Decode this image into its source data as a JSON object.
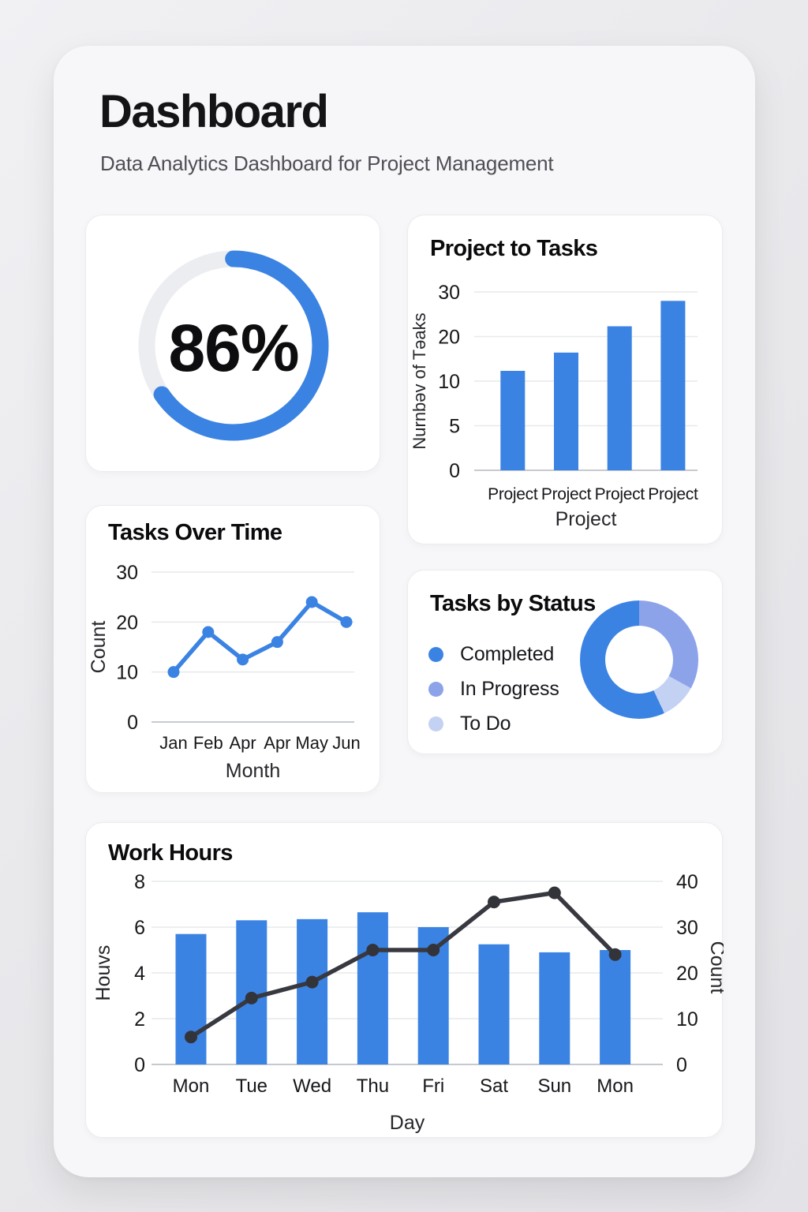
{
  "header": {
    "title": "Dashboard",
    "subtitle": "Data Analytics Dashboard for Project Management"
  },
  "colors": {
    "blue": "#3b83e3",
    "periwinkle": "#8ca3e9",
    "light_blue": "#c3d1f3",
    "ring_track": "#ebedf0",
    "dark_line": "#383940",
    "dark_dot": "#33343a",
    "grid": "#e7e9ec",
    "baseline": "#c6cacf",
    "tick_text": "#17181b",
    "axis_title_text": "#26272b"
  },
  "chart_data": [
    {
      "id": "completion_gauge",
      "type": "gauge",
      "label": "86%",
      "value": 86
    },
    {
      "id": "project_to_tasks",
      "type": "bar",
      "title": "Project to Tasks",
      "xlabel": "Project",
      "ylabel": "Nurnbəv of Təaks",
      "categories": [
        "Project",
        "Project",
        "Project",
        "Project"
      ],
      "values": [
        12.3,
        16.4,
        22.3,
        28
      ],
      "yticks": [
        0,
        5,
        10,
        20,
        30
      ]
    },
    {
      "id": "tasks_over_time",
      "type": "line",
      "title": "Tasks Over Time",
      "xlabel": "Month",
      "ylabel": "Count",
      "categories": [
        "Jan",
        "Feb",
        "Apr",
        "Apr",
        "May",
        "Jun"
      ],
      "values": [
        10,
        18,
        12.5,
        16,
        24,
        20
      ],
      "yticks": [
        0,
        10,
        20,
        30
      ]
    },
    {
      "id": "tasks_by_status",
      "type": "donut",
      "title": "Tasks by Status",
      "slices": [
        {
          "label": "In Progress",
          "pct": 33,
          "color": "#8ca3e9"
        },
        {
          "label": "To Do",
          "pct": 10,
          "color": "#c3d1f3"
        },
        {
          "label": "Completed",
          "pct": 57,
          "color": "#3b83e3"
        }
      ],
      "legend": [
        {
          "label": "Completed",
          "color": "#3b83e3"
        },
        {
          "label": "In Progress",
          "color": "#8ca3e9"
        },
        {
          "label": "To Do",
          "color": "#c3d1f3"
        }
      ]
    },
    {
      "id": "work_hours",
      "type": "bar+line",
      "title": "Work Hours",
      "xlabel": "Day",
      "ylabel_left": "Houvs",
      "ylabel_right": "Count",
      "categories": [
        "Mon",
        "Tue",
        "Wed",
        "Thu",
        "Fri",
        "Sat",
        "Sun",
        "Mon"
      ],
      "series": [
        {
          "name": "Hours",
          "type": "bar",
          "axis": "left",
          "values": [
            5.7,
            6.3,
            6.35,
            6.65,
            6.0,
            5.25,
            4.9,
            5.0
          ]
        },
        {
          "name": "Count",
          "type": "line",
          "axis": "right",
          "values": [
            6,
            14.5,
            18,
            25,
            25,
            35.5,
            37.5,
            24
          ]
        }
      ],
      "yticks_left": [
        0,
        2,
        4,
        6,
        8
      ],
      "yticks_right": [
        0,
        10,
        20,
        30,
        40
      ]
    }
  ]
}
